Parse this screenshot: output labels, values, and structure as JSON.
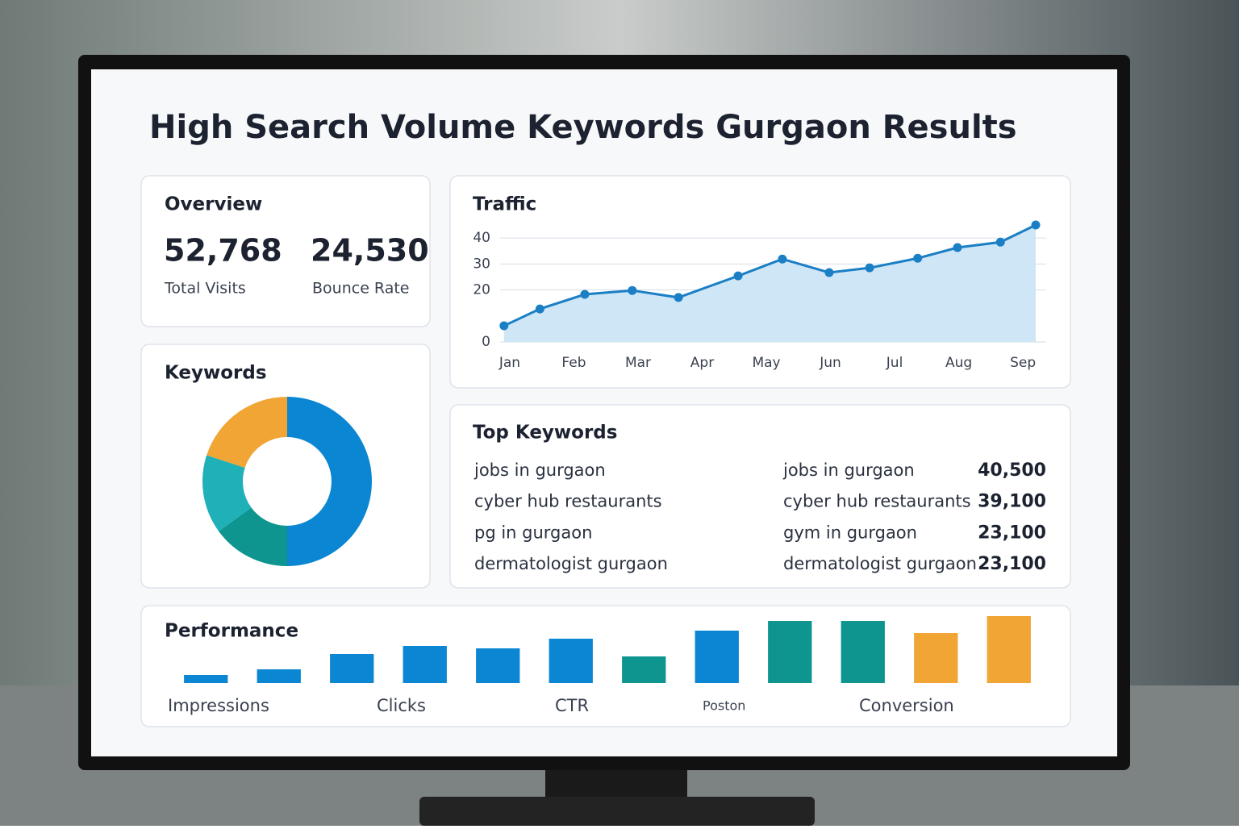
{
  "title": "High Search Volume Keywords Gurgaon Results",
  "overview": {
    "heading": "Overview",
    "stats": [
      {
        "value": "52,768",
        "label": "Total Visits"
      },
      {
        "value": "24,530",
        "label": "Bounce Rate"
      }
    ]
  },
  "traffic": {
    "heading": "Traffic",
    "chart": {
      "type": "line",
      "color": "#1a7fc4",
      "fill": "#cfe6f7",
      "x": [
        0.91,
        1.47,
        2.17,
        2.91,
        3.63,
        4.56,
        5.25,
        5.98,
        6.61,
        7.36,
        7.98,
        8.65,
        9.2
      ],
      "values": [
        6.2,
        12.7,
        18.3,
        19.8,
        17.1,
        25.4,
        31.9,
        26.7,
        28.5,
        32.2,
        36.3,
        38.4,
        45
      ],
      "xlim": [
        0.9,
        9.2
      ],
      "xticks": [
        {
          "value": 1,
          "label": "Jan"
        },
        {
          "value": 2,
          "label": "Feb"
        },
        {
          "value": 3,
          "label": "Mar"
        },
        {
          "value": 4,
          "label": "Apr"
        },
        {
          "value": 5,
          "label": "May"
        },
        {
          "value": 6,
          "label": "Jun"
        },
        {
          "value": 7,
          "label": "Jul"
        },
        {
          "value": 8,
          "label": "Aug"
        },
        {
          "value": 9,
          "label": "Sep"
        }
      ],
      "ylim": [
        0,
        45
      ],
      "yticks": [
        0,
        20,
        30,
        40
      ],
      "grid": true
    }
  },
  "keywords": {
    "heading": "Keywords",
    "chart": {
      "type": "donut",
      "values": [
        50,
        15,
        15,
        20
      ],
      "colors": [
        "#0a86d2",
        "#0e958f",
        "#1fb0b8",
        "#f0a535"
      ]
    }
  },
  "top_keywords": {
    "heading": "Top Keywords",
    "left": [
      "jobs in gurgaon",
      "cyber hub restaurants",
      "pg in gurgaon",
      "dermatologist gurgaon"
    ],
    "right": [
      [
        "jobs in gurgaon",
        "40,500"
      ],
      [
        "cyber hub restaurants",
        "39,100"
      ],
      [
        "gym in gurgaon",
        "23,100"
      ],
      [
        "dermatologist gurgaon",
        "23,100"
      ]
    ]
  },
  "performance": {
    "heading": "Performance",
    "labels": [
      "Impressions",
      "Clicks",
      "CTR",
      "Poston",
      "Conversion"
    ],
    "chart": {
      "type": "bar",
      "values": [
        10,
        17,
        36,
        46,
        43,
        55,
        33,
        65,
        77,
        77,
        62,
        83
      ],
      "colors": [
        "#0a86d2",
        "#0a86d2",
        "#0a86d2",
        "#0a86d2",
        "#0a86d2",
        "#0a86d2",
        "#0e958f",
        "#0a86d2",
        "#0e958f",
        "#0e958f",
        "#f0a535",
        "#f0a535"
      ]
    }
  }
}
